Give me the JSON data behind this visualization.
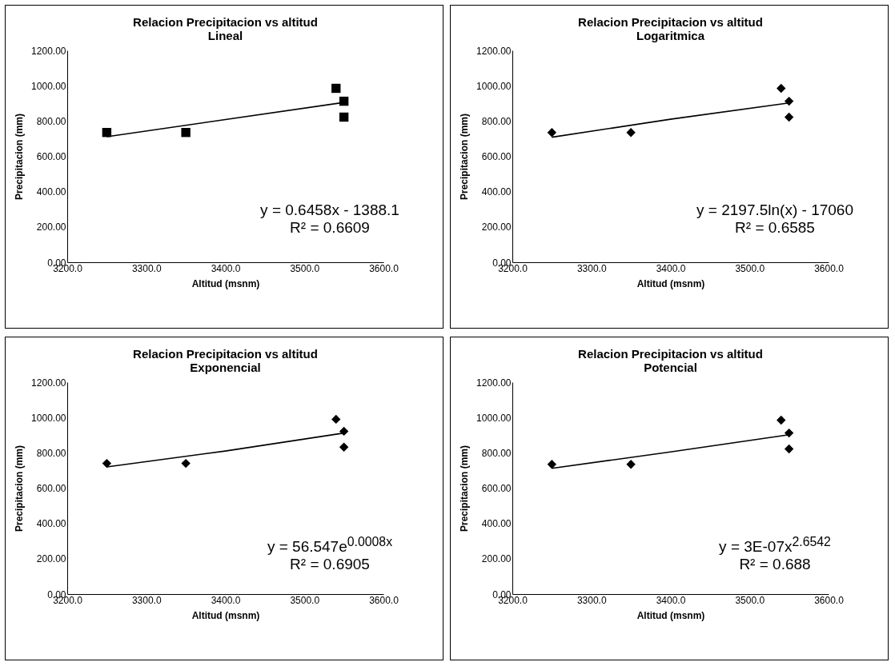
{
  "chart_data": [
    {
      "type": "scatter",
      "title": "Relacion Precipitacion vs altitud",
      "subtitle": "Lineal",
      "xlabel": "Altitud (msnm)",
      "ylabel": "Precipitacion (mm)",
      "xlim": [
        3200,
        3600
      ],
      "xticks": [
        {
          "value": 3200,
          "label": "3200.0"
        },
        {
          "value": 3300,
          "label": "3300.0"
        },
        {
          "value": 3400,
          "label": "3400.0"
        },
        {
          "value": 3500,
          "label": "3500.0"
        },
        {
          "value": 3600,
          "label": "3600.0"
        }
      ],
      "ylim": [
        0,
        1200
      ],
      "yticks": [
        {
          "value": 0,
          "label": "0.00"
        },
        {
          "value": 200,
          "label": "200.00"
        },
        {
          "value": 400,
          "label": "400.00"
        },
        {
          "value": 600,
          "label": "600.00"
        },
        {
          "value": 800,
          "label": "800.00"
        },
        {
          "value": 1000,
          "label": "1000.00"
        },
        {
          "value": 1200,
          "label": "1200.00"
        }
      ],
      "x": [
        3250,
        3350,
        3540,
        3550,
        3550
      ],
      "series": [
        {
          "color": "#000000",
          "marker": "square",
          "values": [
            735,
            735,
            985,
            912,
            822
          ]
        },
        {
          "type": "line",
          "color": "#000000",
          "marker": "none",
          "x": [
            3250,
            3550
          ],
          "values": [
            711,
            905
          ]
        }
      ],
      "annotations": [
        "y = 0.6458x  - 1388.1",
        "R² = 0.6609"
      ]
    },
    {
      "type": "scatter",
      "title": "Relacion Precipitacion vs  altitud",
      "subtitle": "Logaritmica",
      "xlabel": "Altitud (msnm)",
      "ylabel": "Precipitacion (mm)",
      "xlim": [
        3200,
        3600
      ],
      "xticks": [
        {
          "value": 3200,
          "label": "3200.0"
        },
        {
          "value": 3300,
          "label": "3300.0"
        },
        {
          "value": 3400,
          "label": "3400.0"
        },
        {
          "value": 3500,
          "label": "3500.0"
        },
        {
          "value": 3600,
          "label": "3600.0"
        }
      ],
      "ylim": [
        0,
        1200
      ],
      "yticks": [
        {
          "value": 0,
          "label": "0.00"
        },
        {
          "value": 200,
          "label": "200.00"
        },
        {
          "value": 400,
          "label": "400.00"
        },
        {
          "value": 600,
          "label": "600.00"
        },
        {
          "value": 800,
          "label": "800.00"
        },
        {
          "value": 1000,
          "label": "1000.00"
        },
        {
          "value": 1200,
          "label": "1200.00"
        }
      ],
      "x": [
        3250,
        3350,
        3540,
        3550,
        3550
      ],
      "series": [
        {
          "color": "#000000",
          "marker": "diamond",
          "values": [
            735,
            735,
            985,
            912,
            822
          ]
        },
        {
          "type": "line",
          "color": "#000000",
          "marker": "none",
          "x": [
            3250,
            3400,
            3550
          ],
          "values": [
            708,
            810,
            902
          ]
        }
      ],
      "annotations": [
        "y = 2197.5ln(x)  - 17060",
        "R² = 0.6585"
      ]
    },
    {
      "type": "scatter",
      "title": "Relacion Precipitacion vs altitud",
      "subtitle": "Exponencial",
      "xlabel": "Altitud (msnm)",
      "ylabel": "Precipitacion (mm)",
      "xlim": [
        3200,
        3600
      ],
      "xticks": [
        {
          "value": 3200,
          "label": "3200.0"
        },
        {
          "value": 3300,
          "label": "3300.0"
        },
        {
          "value": 3400,
          "label": "3400.0"
        },
        {
          "value": 3500,
          "label": "3500.0"
        },
        {
          "value": 3600,
          "label": "3600.0"
        }
      ],
      "ylim": [
        0,
        1200
      ],
      "yticks": [
        {
          "value": 0,
          "label": "0.00"
        },
        {
          "value": 200,
          "label": "200.00"
        },
        {
          "value": 400,
          "label": "400.00"
        },
        {
          "value": 600,
          "label": "600.00"
        },
        {
          "value": 800,
          "label": "800.00"
        },
        {
          "value": 1000,
          "label": "1000.00"
        },
        {
          "value": 1200,
          "label": "1200.00"
        }
      ],
      "x": [
        3250,
        3350,
        3540,
        3550,
        3550
      ],
      "series": [
        {
          "color": "#000000",
          "marker": "diamond",
          "values": [
            740,
            740,
            990,
            922,
            832
          ]
        },
        {
          "type": "line",
          "color": "#000000",
          "marker": "none",
          "x": [
            3250,
            3400,
            3550
          ],
          "values": [
            720,
            810,
            912
          ]
        }
      ],
      "annotations": [
        "y = 56.547e$^{0.0008x}$",
        "R² = 0.6905"
      ]
    },
    {
      "type": "scatter",
      "title": "Relacion Precipitacion vs altitud",
      "subtitle": "Potencial",
      "xlabel": "Altitud (msnm)",
      "ylabel": "Precipitacion (mm)",
      "xlim": [
        3200,
        3600
      ],
      "xticks": [
        {
          "value": 3200,
          "label": "3200.0"
        },
        {
          "value": 3300,
          "label": "3300.0"
        },
        {
          "value": 3400,
          "label": "3400.0"
        },
        {
          "value": 3500,
          "label": "3500.0"
        },
        {
          "value": 3600,
          "label": "3600.0"
        }
      ],
      "ylim": [
        0,
        1200
      ],
      "yticks": [
        {
          "value": 0,
          "label": "0.00"
        },
        {
          "value": 200,
          "label": "200.00"
        },
        {
          "value": 400,
          "label": "400.00"
        },
        {
          "value": 600,
          "label": "600.00"
        },
        {
          "value": 800,
          "label": "800.00"
        },
        {
          "value": 1000,
          "label": "1000.00"
        },
        {
          "value": 1200,
          "label": "1200.00"
        }
      ],
      "x": [
        3250,
        3350,
        3540,
        3550,
        3550
      ],
      "series": [
        {
          "color": "#000000",
          "marker": "diamond",
          "values": [
            735,
            735,
            985,
            912,
            822
          ]
        },
        {
          "type": "line",
          "color": "#000000",
          "marker": "none",
          "x": [
            3250,
            3400,
            3550
          ],
          "values": [
            712,
            805,
            902
          ]
        }
      ],
      "annotations": [
        "y = 3E-07x$^{2.6542}$",
        "R² = 0.688"
      ]
    }
  ]
}
